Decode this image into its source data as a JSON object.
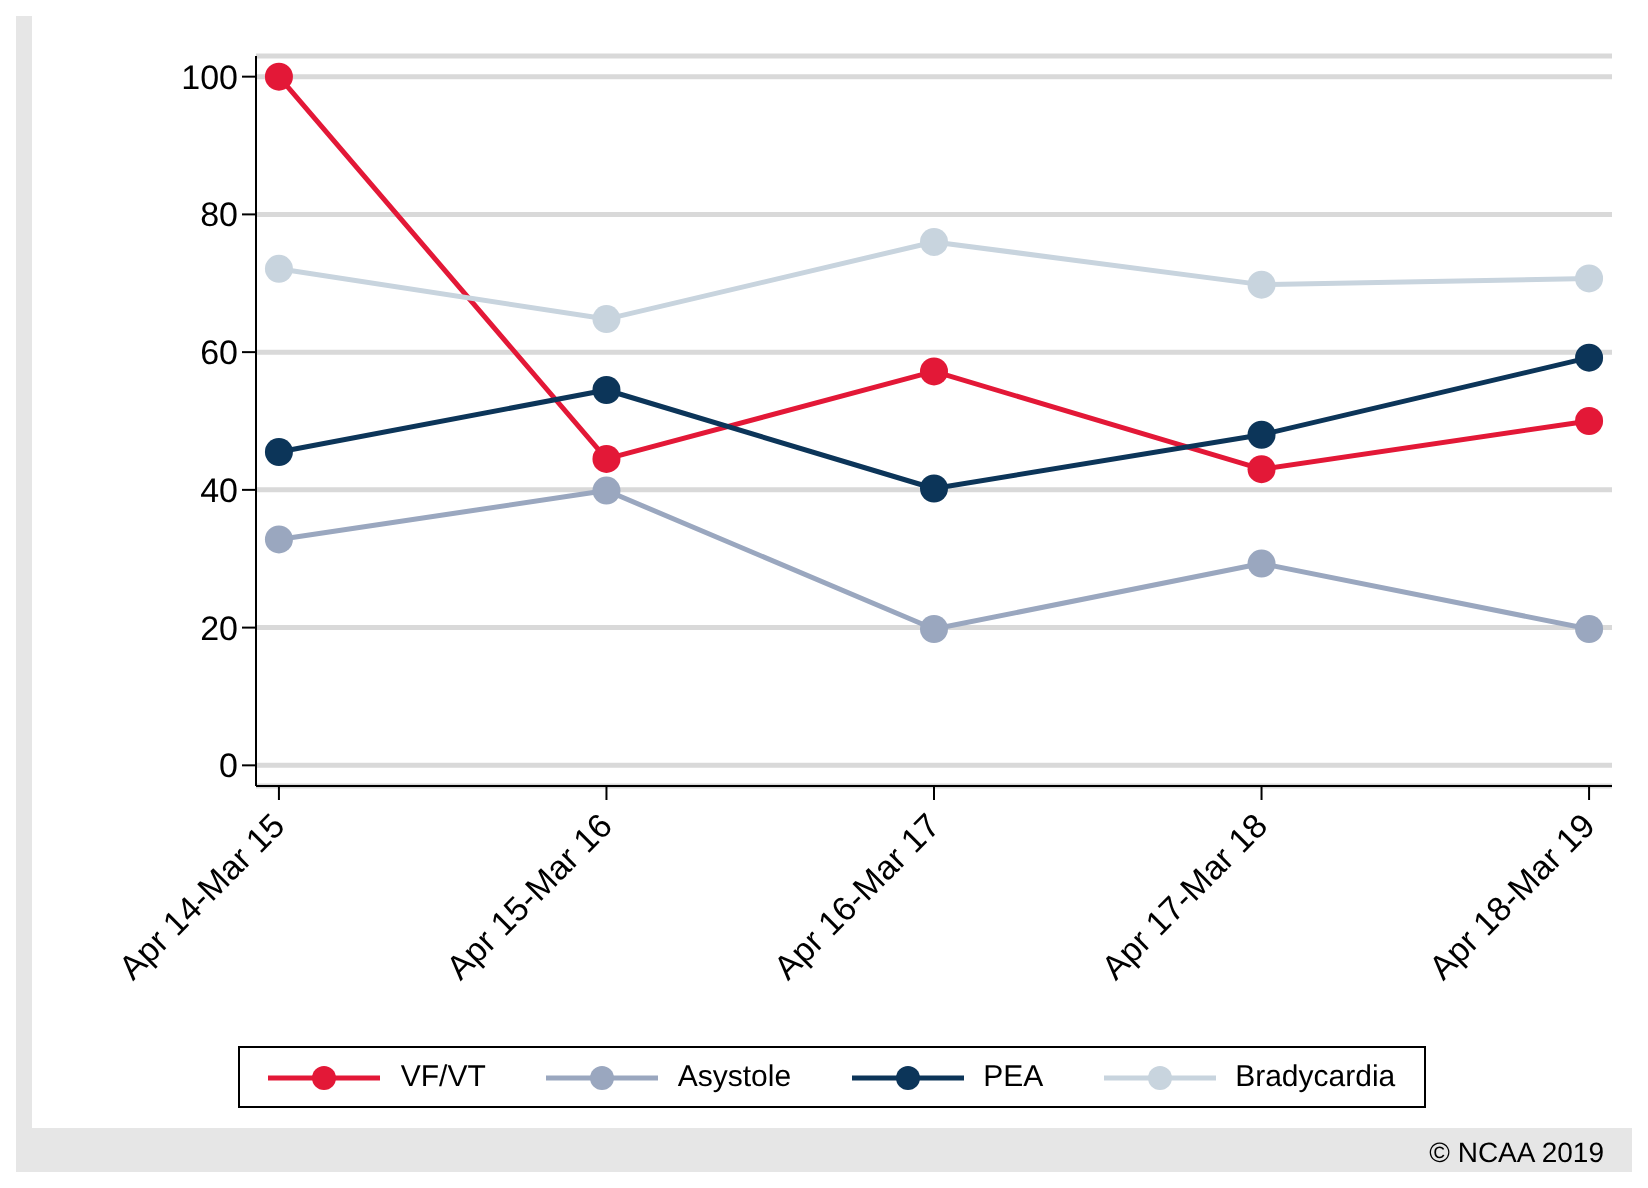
{
  "chart_data": {
    "type": "line",
    "categories": [
      "Apr 14-Mar 15",
      "Apr 15-Mar 16",
      "Apr 16-Mar 17",
      "Apr 17-Mar 18",
      "Apr 18-Mar 19"
    ],
    "series": [
      {
        "name": "VF/VT",
        "color": "#e31837",
        "values": [
          100,
          44.5,
          57.2,
          43,
          50
        ]
      },
      {
        "name": "Asystole",
        "color": "#9aa7bf",
        "values": [
          32.8,
          39.9,
          19.8,
          29.3,
          19.8
        ]
      },
      {
        "name": "PEA",
        "color": "#0c3559",
        "values": [
          45.5,
          54.5,
          40.2,
          48,
          59.2
        ]
      },
      {
        "name": "Bradycardia",
        "color": "#c8d4de",
        "values": [
          72.1,
          64.8,
          76,
          69.8,
          70.7
        ]
      }
    ],
    "ylim": [
      -3,
      103
    ],
    "yticks": [
      0,
      20,
      40,
      60,
      80,
      100
    ],
    "grid": "y",
    "legend": "bottom",
    "marker": "circle",
    "line_style": "solid",
    "annotations": [
      "© NCAA 2019"
    ]
  }
}
